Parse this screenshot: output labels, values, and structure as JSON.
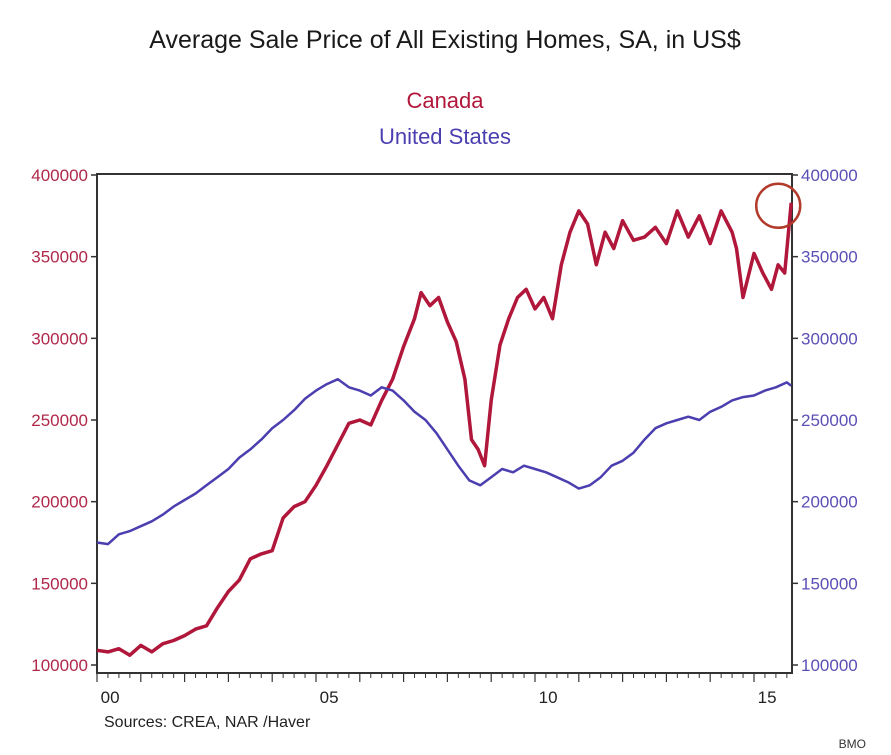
{
  "chart_data": {
    "type": "line",
    "title": "Average Sale Price of All Existing Homes, SA, in US$",
    "legend": [
      {
        "name": "Canada",
        "color": "#b0173a",
        "axis": "left"
      },
      {
        "name": "United States",
        "color": "#4b3fb0",
        "axis": "right"
      }
    ],
    "legend_placement": "top-center",
    "xlabel": "",
    "x_range": [
      2000.0,
      2015.9
    ],
    "x_ticks": [
      {
        "value": 2000,
        "label": "00"
      },
      {
        "value": 2005,
        "label": "05"
      },
      {
        "value": 2010,
        "label": "10"
      },
      {
        "value": 2015,
        "label": "15"
      }
    ],
    "ylabel_left": "",
    "ylabel_right": "",
    "ylim_left": [
      100000,
      400000
    ],
    "ylim_right": [
      100000,
      400000
    ],
    "y_ticks_left": [
      "100000",
      "150000",
      "200000",
      "250000",
      "300000",
      "350000",
      "400000"
    ],
    "y_ticks_right": [
      "100000",
      "150000",
      "200000",
      "250000",
      "300000",
      "350000",
      "400000"
    ],
    "grid": false,
    "source_note": "Sources:  CREA, NAR /Haver",
    "credit": "BMO",
    "annotation": {
      "type": "circle",
      "target": "Canada latest value",
      "color": "#b23a2a"
    },
    "series": [
      {
        "name": "Canada",
        "x": [
          2000.0,
          2000.25,
          2000.5,
          2000.75,
          2001.0,
          2001.25,
          2001.5,
          2001.75,
          2002.0,
          2002.25,
          2002.5,
          2002.75,
          2003.0,
          2003.25,
          2003.5,
          2003.75,
          2004.0,
          2004.25,
          2004.5,
          2004.75,
          2005.0,
          2005.25,
          2005.5,
          2005.75,
          2006.0,
          2006.25,
          2006.5,
          2006.75,
          2007.0,
          2007.25,
          2007.4,
          2007.6,
          2007.8,
          2008.0,
          2008.2,
          2008.4,
          2008.55,
          2008.7,
          2008.85,
          2009.0,
          2009.2,
          2009.4,
          2009.6,
          2009.8,
          2010.0,
          2010.2,
          2010.4,
          2010.6,
          2010.8,
          2011.0,
          2011.2,
          2011.4,
          2011.6,
          2011.8,
          2012.0,
          2012.25,
          2012.5,
          2012.75,
          2013.0,
          2013.25,
          2013.5,
          2013.75,
          2014.0,
          2014.25,
          2014.5,
          2014.6,
          2014.75,
          2015.0,
          2015.2,
          2015.4,
          2015.55,
          2015.7,
          2015.85
        ],
        "values": [
          109000,
          108000,
          110000,
          106000,
          112000,
          108000,
          113000,
          115000,
          118000,
          122000,
          124000,
          135000,
          145000,
          152000,
          165000,
          168000,
          170000,
          190000,
          197000,
          200000,
          210000,
          222000,
          235000,
          248000,
          250000,
          247000,
          262000,
          275000,
          295000,
          312000,
          328000,
          320000,
          325000,
          310000,
          298000,
          275000,
          238000,
          232000,
          222000,
          262000,
          296000,
          312000,
          325000,
          330000,
          318000,
          325000,
          312000,
          345000,
          365000,
          378000,
          370000,
          345000,
          365000,
          355000,
          372000,
          360000,
          362000,
          368000,
          358000,
          378000,
          362000,
          375000,
          358000,
          378000,
          365000,
          355000,
          325000,
          352000,
          340000,
          330000,
          345000,
          340000,
          383000
        ]
      },
      {
        "name": "United States",
        "x": [
          2000.0,
          2000.25,
          2000.5,
          2000.75,
          2001.0,
          2001.25,
          2001.5,
          2001.75,
          2002.0,
          2002.25,
          2002.5,
          2002.75,
          2003.0,
          2003.25,
          2003.5,
          2003.75,
          2004.0,
          2004.25,
          2004.5,
          2004.75,
          2005.0,
          2005.25,
          2005.5,
          2005.75,
          2006.0,
          2006.25,
          2006.5,
          2006.75,
          2007.0,
          2007.25,
          2007.5,
          2007.75,
          2008.0,
          2008.25,
          2008.5,
          2008.75,
          2009.0,
          2009.25,
          2009.5,
          2009.75,
          2010.0,
          2010.25,
          2010.5,
          2010.75,
          2011.0,
          2011.25,
          2011.5,
          2011.75,
          2012.0,
          2012.25,
          2012.5,
          2012.75,
          2013.0,
          2013.25,
          2013.5,
          2013.75,
          2014.0,
          2014.25,
          2014.5,
          2014.75,
          2015.0,
          2015.25,
          2015.5,
          2015.75,
          2015.85
        ],
        "values": [
          175000,
          174000,
          180000,
          182000,
          185000,
          188000,
          192000,
          197000,
          201000,
          205000,
          210000,
          215000,
          220000,
          227000,
          232000,
          238000,
          245000,
          250000,
          256000,
          263000,
          268000,
          272000,
          275000,
          270000,
          268000,
          265000,
          270000,
          268000,
          262000,
          255000,
          250000,
          242000,
          232000,
          222000,
          213000,
          210000,
          215000,
          220000,
          218000,
          222000,
          220000,
          218000,
          215000,
          212000,
          208000,
          210000,
          215000,
          222000,
          225000,
          230000,
          238000,
          245000,
          248000,
          250000,
          252000,
          250000,
          255000,
          258000,
          262000,
          264000,
          265000,
          268000,
          270000,
          273000,
          271000
        ]
      }
    ]
  }
}
